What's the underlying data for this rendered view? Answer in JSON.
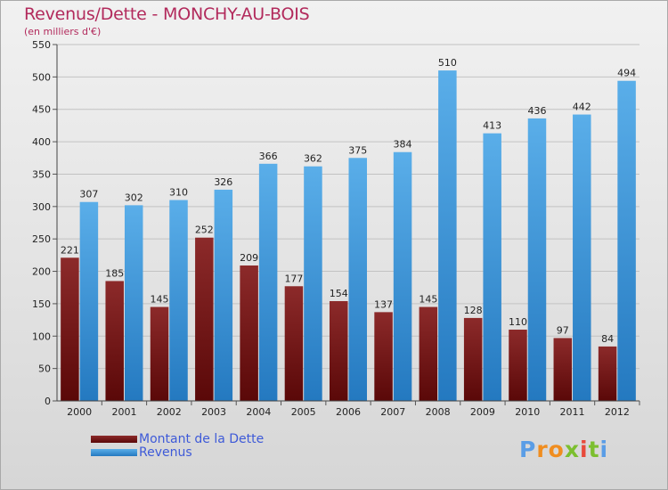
{
  "header": {
    "title": "Revenus/Dette - MONCHY-AU-BOIS",
    "subtitle": "(en milliers d'€)"
  },
  "legend": {
    "dette_label": "Montant de la Dette",
    "revenus_label": "Revenus"
  },
  "logo": {
    "letters": [
      "P",
      "r",
      "o",
      "x",
      "i",
      "t",
      "i"
    ],
    "colors": [
      "#5a9de6",
      "#f08d1f",
      "#f08d1f",
      "#7cbf2f",
      "#e84a3b",
      "#7cbf2f",
      "#5a9de6"
    ]
  },
  "colors": {
    "dette": "#7a1a18",
    "revenus": "#3a97e0",
    "title": "#b22a5c"
  },
  "chart_data": {
    "type": "bar",
    "title": "Revenus/Dette - MONCHY-AU-BOIS",
    "ylabel": "(en milliers d'€)",
    "xlabel": "",
    "ylim": [
      0,
      550
    ],
    "yticks": [
      0,
      50,
      100,
      150,
      200,
      250,
      300,
      350,
      400,
      450,
      500,
      550
    ],
    "grid": true,
    "legend_position": "bottom-left",
    "categories": [
      "2000",
      "2001",
      "2002",
      "2003",
      "2004",
      "2005",
      "2006",
      "2007",
      "2008",
      "2009",
      "2010",
      "2011",
      "2012"
    ],
    "series": [
      {
        "name": "Montant de la Dette",
        "values": [
          221,
          185,
          145,
          252,
          209,
          177,
          154,
          137,
          145,
          128,
          110,
          97,
          84
        ]
      },
      {
        "name": "Revenus",
        "values": [
          307,
          302,
          310,
          326,
          366,
          362,
          375,
          384,
          510,
          413,
          436,
          442,
          494
        ]
      }
    ]
  }
}
